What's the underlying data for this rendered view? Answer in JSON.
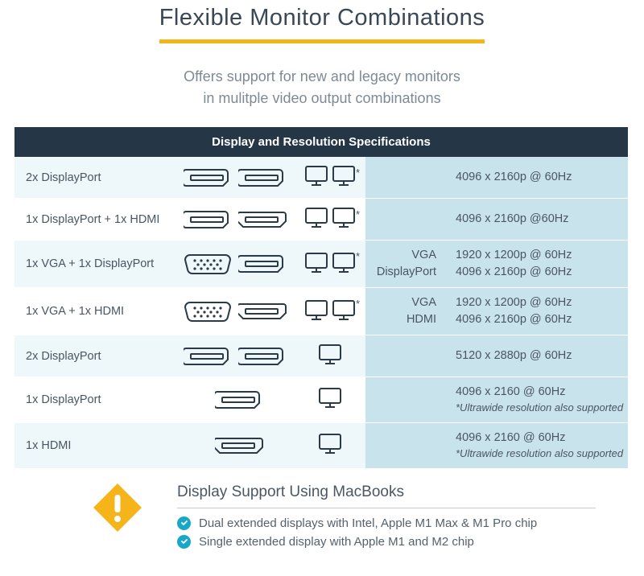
{
  "title": "Flexible Monitor Combinations",
  "subtitle_line1": "Offers support for new and legacy monitors",
  "subtitle_line2": "in mulitple video output combinations",
  "table_header": "Display and Resolution Specifications",
  "colors": {
    "accent_underline": "#f4b41a",
    "header_bg": "#253646",
    "row_alt_bg": "#eef7fa",
    "res_bg": "#c9e3ed",
    "text": "#3a4856",
    "subtext": "#7d8a95",
    "check": "#1aa7c7",
    "icon_stroke": "#2b3a47"
  },
  "rows": [
    {
      "label": "2x DisplayPort",
      "ports": [
        "displayport",
        "displayport"
      ],
      "monitors": 2,
      "asterisk": true,
      "type_labels": [],
      "resolutions": [
        "4096 x 2160p @ 60Hz"
      ],
      "notes": []
    },
    {
      "label": "1x DisplayPort + 1x HDMI",
      "ports": [
        "displayport",
        "hdmi"
      ],
      "monitors": 2,
      "asterisk": true,
      "type_labels": [],
      "resolutions": [
        "4096 x 2160p @60Hz"
      ],
      "notes": []
    },
    {
      "label": "1x VGA + 1x DisplayPort",
      "ports": [
        "vga",
        "displayport"
      ],
      "monitors": 2,
      "asterisk": true,
      "type_labels": [
        "VGA",
        "DisplayPort"
      ],
      "resolutions": [
        "1920 x 1200p @ 60Hz",
        "4096 x 2160p @ 60Hz"
      ],
      "notes": []
    },
    {
      "label": "1x VGA + 1x HDMI",
      "ports": [
        "vga",
        "hdmi"
      ],
      "monitors": 2,
      "asterisk": true,
      "type_labels": [
        "VGA",
        "HDMI"
      ],
      "resolutions": [
        "1920 x 1200p @ 60Hz",
        "4096 x 2160p @ 60Hz"
      ],
      "notes": []
    },
    {
      "label": "2x DisplayPort",
      "ports": [
        "displayport",
        "displayport"
      ],
      "monitors": 1,
      "asterisk": false,
      "type_labels": [],
      "resolutions": [
        "5120 x 2880p @ 60Hz"
      ],
      "notes": []
    },
    {
      "label": "1x DisplayPort",
      "ports": [
        "displayport"
      ],
      "monitors": 1,
      "asterisk": false,
      "type_labels": [],
      "resolutions": [
        "4096 x 2160 @ 60Hz"
      ],
      "notes": [
        "*Ultrawide resolution also supported"
      ]
    },
    {
      "label": "1x HDMI",
      "ports": [
        "hdmi"
      ],
      "monitors": 1,
      "asterisk": false,
      "type_labels": [],
      "resolutions": [
        "4096 x 2160 @ 60Hz"
      ],
      "notes": [
        "*Ultrawide resolution also supported"
      ]
    }
  ],
  "macbook": {
    "title": "Display Support Using MacBooks",
    "items": [
      "Dual extended displays with Intel, Apple M1 Max & M1 Pro chip",
      "Single extended display with Apple M1 and M2 chip"
    ]
  }
}
